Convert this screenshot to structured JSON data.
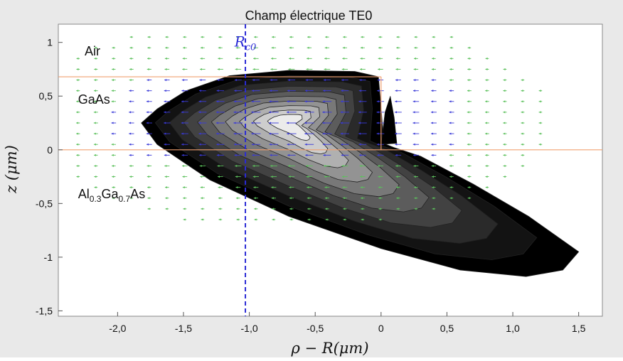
{
  "chart_data": {
    "type": "heatmap",
    "title": "Champ électrique TE0",
    "xlabel": "ρ − R(μm)",
    "ylabel": "z (μm)",
    "xlim": [
      -2.45,
      1.68
    ],
    "ylim": [
      -1.55,
      1.17
    ],
    "x_ticks": [
      -2.0,
      -1.5,
      -1.0,
      -0.5,
      0,
      0.5,
      1.0,
      1.5
    ],
    "x_tick_labels": [
      "-2,0",
      "-1,5",
      "-1,0",
      "-0,5",
      "0",
      "0,5",
      "1,0",
      "1,5"
    ],
    "y_ticks": [
      1,
      0.5,
      0,
      -0.5,
      -1,
      -1.5
    ],
    "y_tick_labels": [
      "1",
      "0,5",
      "0",
      "-0,5",
      "-1",
      "-1,5"
    ],
    "grid": false,
    "colormap": "grayscale",
    "field_peak": {
      "x": -0.7,
      "y": 0.27
    },
    "contour_levels": 10,
    "boundaries": {
      "top_interface_z": 0.68,
      "bottom_interface_z": 0.0,
      "waveguide_edge_x": 0.0
    },
    "marker": {
      "label_base": "R",
      "label_sub": "c0",
      "x": -1.03,
      "color": "#2b2bd6"
    },
    "region_labels": [
      {
        "name": "Air",
        "x": -2.25,
        "y": 0.88
      },
      {
        "name": "GaAs",
        "x": -2.3,
        "y": 0.43
      },
      {
        "name": "Al0.3Ga0.7As",
        "base1": "Al",
        "sub1": "0.3",
        "base2": "Ga",
        "sub2": "0.7",
        "base3": "As",
        "x": -2.3,
        "y": -0.45
      }
    ]
  },
  "colors": {
    "background": "#e9e9e9",
    "plot_area": "#ffffff",
    "interface_line": "#f0a070",
    "marker_line": "#2b2bd6",
    "arrows_core": "#3a3ad8",
    "arrows_far": "#5cc05c"
  }
}
